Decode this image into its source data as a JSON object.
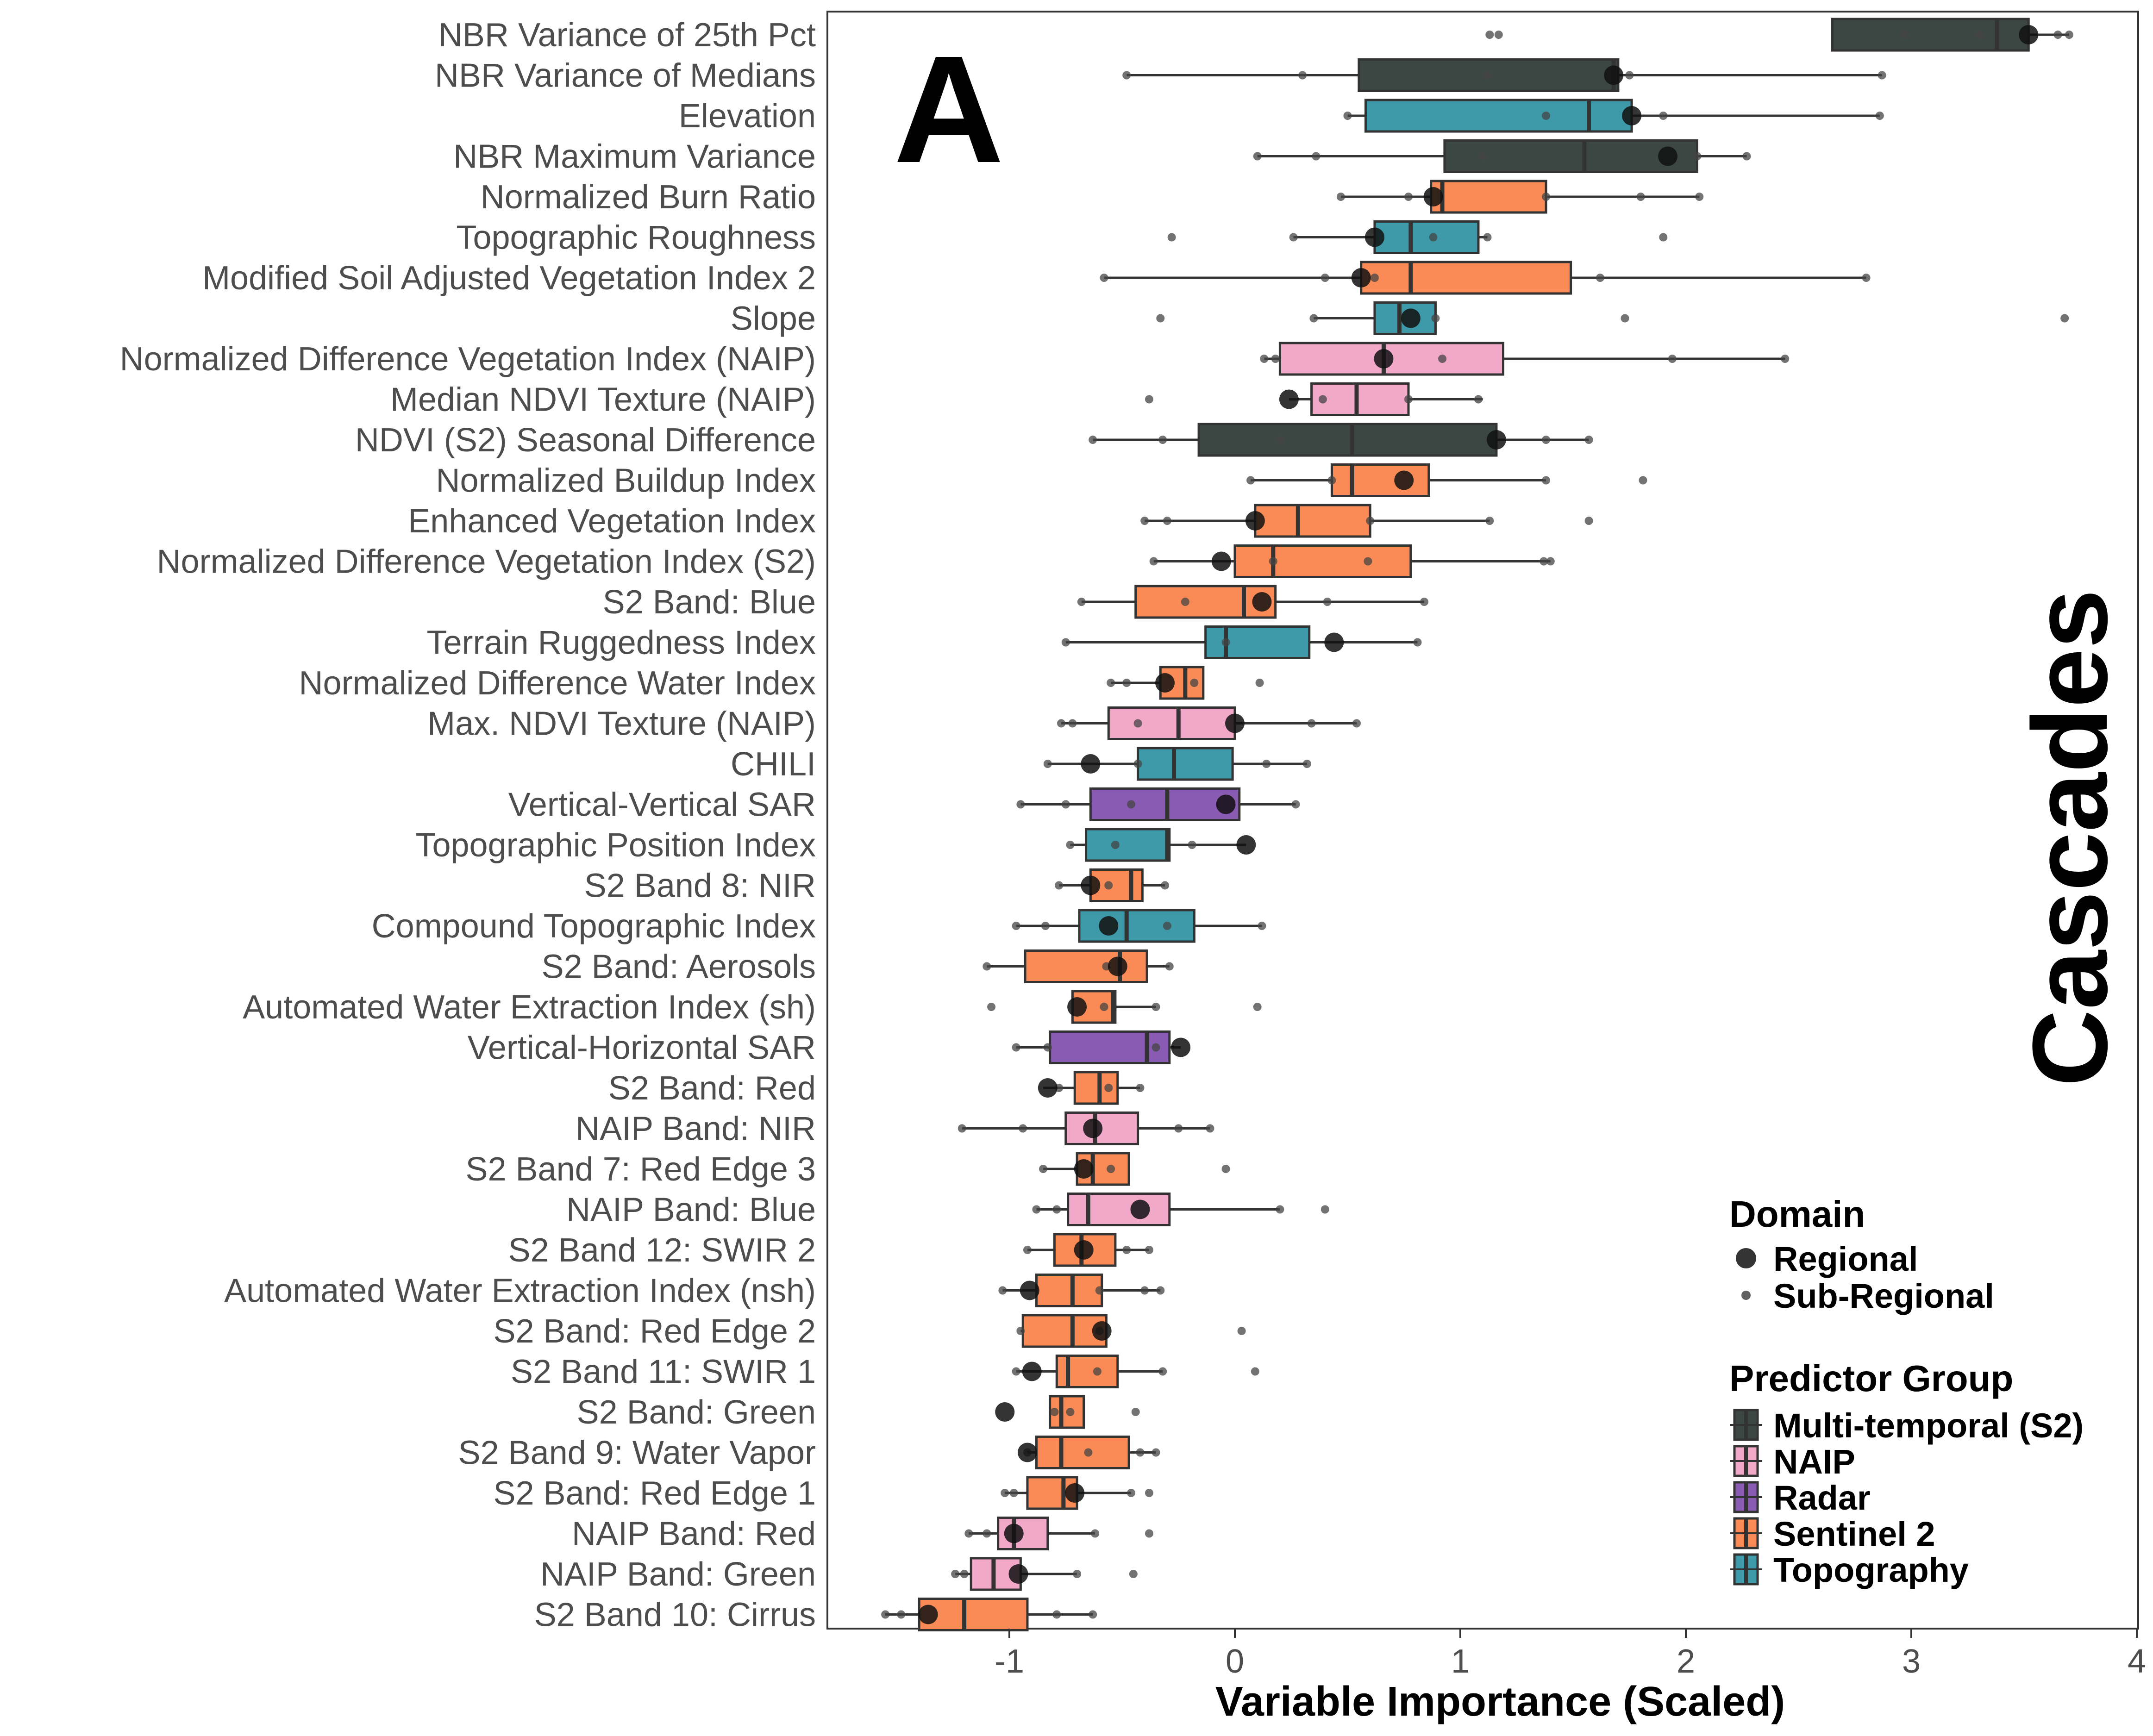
{
  "chart_data": {
    "type": "box",
    "panel_letter": "A",
    "facet_title": "Cascades",
    "xlabel": "Variable Importance (Scaled)",
    "ylabel": "",
    "xlim": [
      -1.8,
      4.0
    ],
    "x_ticks": [
      -1,
      0,
      1,
      2,
      3,
      4
    ],
    "x_tick_labels": [
      "-1",
      "0",
      "1",
      "2",
      "3",
      "4"
    ],
    "grid": false,
    "legend_position": "right-bottom, inside panel",
    "legend": {
      "domain_title": "Domain",
      "domain_items": [
        {
          "label": "Regional",
          "marker": "large-dot"
        },
        {
          "label": "Sub-Regional",
          "marker": "small-dot"
        }
      ],
      "group_title": "Predictor Group",
      "group_items": [
        {
          "label": "Multi-temporal (S2)",
          "color": "#3c4743"
        },
        {
          "label": "NAIP",
          "color": "#f2a8c8"
        },
        {
          "label": "Radar",
          "color": "#8a5bb3"
        },
        {
          "label": "Sentinel 2",
          "color": "#fb8b56"
        },
        {
          "label": "Topography",
          "color": "#3e9aa8"
        }
      ]
    },
    "group_colors": {
      "Multi-temporal (S2)": "#3c4743",
      "NAIP": "#f2a8c8",
      "Radar": "#8a5bb3",
      "Sentinel 2": "#fb8b56",
      "Topography": "#3e9aa8"
    },
    "series": [
      {
        "name": "NBR Variance of 25th Pct",
        "group": "Multi-temporal (S2)",
        "whisker_low": 2.65,
        "q1": 2.65,
        "median": 3.38,
        "q3": 3.52,
        "whisker_high": 3.7,
        "regional": 3.52,
        "subregional": [
          1.13,
          1.17,
          2.97,
          3.3,
          3.65,
          3.7
        ]
      },
      {
        "name": "NBR Variance of Medians",
        "group": "Multi-temporal (S2)",
        "whisker_low": -0.48,
        "q1": 0.55,
        "median": 1.68,
        "q3": 1.7,
        "whisker_high": 2.87,
        "regional": 1.68,
        "subregional": [
          -0.48,
          0.3,
          1.12,
          1.75,
          2.87
        ]
      },
      {
        "name": "Elevation",
        "group": "Topography",
        "whisker_low": 0.5,
        "q1": 0.58,
        "median": 1.57,
        "q3": 1.76,
        "whisker_high": 2.86,
        "regional": 1.76,
        "subregional": [
          0.5,
          1.38,
          1.9,
          2.86
        ]
      },
      {
        "name": "NBR Maximum Variance",
        "group": "Multi-temporal (S2)",
        "whisker_low": 0.1,
        "q1": 0.93,
        "median": 1.55,
        "q3": 2.05,
        "whisker_high": 2.27,
        "regional": 1.92,
        "subregional": [
          0.1,
          0.36,
          1.1,
          2.05,
          2.27
        ]
      },
      {
        "name": "Normalized Burn Ratio",
        "group": "Sentinel 2",
        "whisker_low": 0.47,
        "q1": 0.87,
        "median": 0.92,
        "q3": 1.38,
        "whisker_high": 2.06,
        "regional": 0.88,
        "subregional": [
          0.47,
          0.77,
          1.38,
          1.8,
          2.06
        ]
      },
      {
        "name": "Topographic Roughness",
        "group": "Topography",
        "whisker_low": 0.26,
        "q1": 0.62,
        "median": 0.78,
        "q3": 1.08,
        "whisker_high": 1.12,
        "regional": 0.62,
        "subregional": [
          -0.28,
          0.26,
          0.88,
          1.12,
          1.9
        ]
      },
      {
        "name": "Modified Soil Adjusted Vegetation Index 2",
        "group": "Sentinel 2",
        "whisker_low": -0.58,
        "q1": 0.56,
        "median": 0.78,
        "q3": 1.49,
        "whisker_high": 2.8,
        "regional": 0.56,
        "subregional": [
          -0.58,
          0.4,
          0.62,
          1.62,
          2.8
        ]
      },
      {
        "name": "Slope",
        "group": "Topography",
        "whisker_low": 0.35,
        "q1": 0.62,
        "median": 0.73,
        "q3": 0.89,
        "whisker_high": 0.89,
        "regional": 0.78,
        "subregional": [
          -0.33,
          0.35,
          0.89,
          1.73,
          3.68
        ]
      },
      {
        "name": "Normalized Difference Vegetation Index (NAIP)",
        "group": "NAIP",
        "whisker_low": 0.13,
        "q1": 0.2,
        "median": 0.66,
        "q3": 1.19,
        "whisker_high": 2.44,
        "regional": 0.66,
        "subregional": [
          0.13,
          0.18,
          0.92,
          1.94,
          2.44
        ]
      },
      {
        "name": "Median NDVI Texture (NAIP)",
        "group": "NAIP",
        "whisker_low": 0.24,
        "q1": 0.34,
        "median": 0.54,
        "q3": 0.77,
        "whisker_high": 1.1,
        "regional": 0.24,
        "subregional": [
          -0.38,
          0.39,
          0.77,
          1.08
        ]
      },
      {
        "name": "NDVI (S2) Seasonal Difference",
        "group": "Multi-temporal (S2)",
        "whisker_low": -0.63,
        "q1": -0.16,
        "median": 0.52,
        "q3": 1.16,
        "whisker_high": 1.57,
        "regional": 1.16,
        "subregional": [
          -0.63,
          -0.32,
          0.2,
          1.38,
          1.57
        ]
      },
      {
        "name": "Normalized Buildup Index",
        "group": "Sentinel 2",
        "whisker_low": 0.07,
        "q1": 0.43,
        "median": 0.52,
        "q3": 0.86,
        "whisker_high": 1.38,
        "regional": 0.75,
        "subregional": [
          0.07,
          0.43,
          1.38,
          1.81
        ]
      },
      {
        "name": "Enhanced Vegetation Index",
        "group": "Sentinel 2",
        "whisker_low": -0.4,
        "q1": 0.09,
        "median": 0.28,
        "q3": 0.6,
        "whisker_high": 1.13,
        "regional": 0.09,
        "subregional": [
          -0.4,
          -0.3,
          0.6,
          1.13,
          1.57
        ]
      },
      {
        "name": "Normalized Difference Vegetation Index (S2)",
        "group": "Sentinel 2",
        "whisker_low": -0.36,
        "q1": 0.0,
        "median": 0.17,
        "q3": 0.78,
        "whisker_high": 1.4,
        "regional": -0.06,
        "subregional": [
          -0.36,
          0.17,
          0.59,
          1.37,
          1.4
        ]
      },
      {
        "name": "S2 Band: Blue",
        "group": "Sentinel 2",
        "whisker_low": -0.68,
        "q1": -0.44,
        "median": 0.04,
        "q3": 0.18,
        "whisker_high": 0.84,
        "regional": 0.12,
        "subregional": [
          -0.68,
          -0.22,
          0.41,
          0.84
        ]
      },
      {
        "name": "Terrain Ruggedness Index",
        "group": "Topography",
        "whisker_low": -0.75,
        "q1": -0.13,
        "median": -0.04,
        "q3": 0.33,
        "whisker_high": 0.81,
        "regional": 0.44,
        "subregional": [
          -0.75,
          -0.04,
          0.81
        ]
      },
      {
        "name": "Normalized Difference Water Index",
        "group": "Sentinel 2",
        "whisker_low": -0.55,
        "q1": -0.33,
        "median": -0.22,
        "q3": -0.14,
        "whisker_high": -0.14,
        "regional": -0.31,
        "subregional": [
          -0.55,
          -0.48,
          -0.18,
          0.11
        ]
      },
      {
        "name": "Max. NDVI Texture (NAIP)",
        "group": "NAIP",
        "whisker_low": -0.77,
        "q1": -0.56,
        "median": -0.25,
        "q3": 0.0,
        "whisker_high": 0.54,
        "regional": 0.0,
        "subregional": [
          -0.77,
          -0.72,
          -0.43,
          0.34,
          0.54
        ]
      },
      {
        "name": "CHILI",
        "group": "Topography",
        "whisker_low": -0.83,
        "q1": -0.43,
        "median": -0.27,
        "q3": -0.01,
        "whisker_high": 0.32,
        "regional": -0.64,
        "subregional": [
          -0.83,
          -0.43,
          0.14,
          0.32
        ]
      },
      {
        "name": "Vertical-Vertical SAR",
        "group": "Radar",
        "whisker_low": -0.95,
        "q1": -0.64,
        "median": -0.3,
        "q3": 0.02,
        "whisker_high": 0.27,
        "regional": -0.04,
        "subregional": [
          -0.95,
          -0.75,
          -0.46,
          0.27
        ]
      },
      {
        "name": "Topographic Position Index",
        "group": "Topography",
        "whisker_low": -0.73,
        "q1": -0.66,
        "median": -0.3,
        "q3": -0.29,
        "whisker_high": 0.05,
        "regional": 0.05,
        "subregional": [
          -0.73,
          -0.53,
          -0.19
        ]
      },
      {
        "name": "S2 Band 8: NIR",
        "group": "Sentinel 2",
        "whisker_low": -0.78,
        "q1": -0.64,
        "median": -0.46,
        "q3": -0.41,
        "whisker_high": -0.31,
        "regional": -0.64,
        "subregional": [
          -0.78,
          -0.56,
          -0.31
        ]
      },
      {
        "name": "Compound Topographic Index",
        "group": "Topography",
        "whisker_low": -0.97,
        "q1": -0.69,
        "median": -0.48,
        "q3": -0.18,
        "whisker_high": 0.12,
        "regional": -0.56,
        "subregional": [
          -0.97,
          -0.84,
          -0.3,
          0.12
        ]
      },
      {
        "name": "S2 Band: Aerosols",
        "group": "Sentinel 2",
        "whisker_low": -1.1,
        "q1": -0.93,
        "median": -0.51,
        "q3": -0.39,
        "whisker_high": -0.29,
        "regional": -0.52,
        "subregional": [
          -1.1,
          -0.57,
          -0.29
        ]
      },
      {
        "name": "Automated Water Extraction Index (sh)",
        "group": "Sentinel 2",
        "whisker_low": -0.72,
        "q1": -0.72,
        "median": -0.54,
        "q3": -0.53,
        "whisker_high": -0.35,
        "regional": -0.7,
        "subregional": [
          -1.08,
          -0.58,
          -0.35,
          0.1
        ]
      },
      {
        "name": "Vertical-Horizontal SAR",
        "group": "Radar",
        "whisker_low": -0.97,
        "q1": -0.82,
        "median": -0.39,
        "q3": -0.29,
        "whisker_high": -0.24,
        "regional": -0.24,
        "subregional": [
          -0.97,
          -0.83,
          -0.35
        ]
      },
      {
        "name": "S2 Band: Red",
        "group": "Sentinel 2",
        "whisker_low": -0.85,
        "q1": -0.71,
        "median": -0.6,
        "q3": -0.52,
        "whisker_high": -0.42,
        "regional": -0.83,
        "subregional": [
          -0.78,
          -0.56,
          -0.42
        ]
      },
      {
        "name": "NAIP Band: NIR",
        "group": "NAIP",
        "whisker_low": -1.21,
        "q1": -0.75,
        "median": -0.62,
        "q3": -0.43,
        "whisker_high": -0.11,
        "regional": -0.63,
        "subregional": [
          -1.21,
          -0.94,
          -0.25,
          -0.11
        ]
      },
      {
        "name": "S2 Band 7: Red Edge 3",
        "group": "Sentinel 2",
        "whisker_low": -0.85,
        "q1": -0.7,
        "median": -0.63,
        "q3": -0.47,
        "whisker_high": -0.47,
        "regional": -0.67,
        "subregional": [
          -0.85,
          -0.55,
          -0.04
        ]
      },
      {
        "name": "NAIP Band: Blue",
        "group": "NAIP",
        "whisker_low": -0.88,
        "q1": -0.74,
        "median": -0.65,
        "q3": -0.29,
        "whisker_high": 0.2,
        "regional": -0.42,
        "subregional": [
          -0.88,
          -0.79,
          0.2,
          0.4
        ]
      },
      {
        "name": "S2 Band 12: SWIR 2",
        "group": "Sentinel 2",
        "whisker_low": -0.92,
        "q1": -0.8,
        "median": -0.68,
        "q3": -0.53,
        "whisker_high": -0.38,
        "regional": -0.67,
        "subregional": [
          -0.92,
          -0.48,
          -0.38
        ]
      },
      {
        "name": "Automated Water Extraction Index (nsh)",
        "group": "Sentinel 2",
        "whisker_low": -1.03,
        "q1": -0.88,
        "median": -0.72,
        "q3": -0.59,
        "whisker_high": -0.33,
        "regional": -0.91,
        "subregional": [
          -1.03,
          -0.6,
          -0.4,
          -0.33
        ]
      },
      {
        "name": "S2 Band: Red Edge 2",
        "group": "Sentinel 2",
        "whisker_low": -0.95,
        "q1": -0.94,
        "median": -0.72,
        "q3": -0.57,
        "whisker_high": -0.57,
        "regional": -0.59,
        "subregional": [
          -0.95,
          -0.6,
          0.03
        ]
      },
      {
        "name": "S2 Band 11: SWIR 1",
        "group": "Sentinel 2",
        "whisker_low": -0.97,
        "q1": -0.79,
        "median": -0.74,
        "q3": -0.52,
        "whisker_high": -0.32,
        "regional": -0.9,
        "subregional": [
          -0.97,
          -0.61,
          -0.32,
          0.09
        ]
      },
      {
        "name": "S2 Band: Green",
        "group": "Sentinel 2",
        "whisker_low": -0.82,
        "q1": -0.82,
        "median": -0.77,
        "q3": -0.67,
        "whisker_high": -0.67,
        "regional": -1.02,
        "subregional": [
          -0.8,
          -0.73,
          -0.44
        ]
      },
      {
        "name": "S2 Band 9: Water Vapor",
        "group": "Sentinel 2",
        "whisker_low": -0.92,
        "q1": -0.88,
        "median": -0.77,
        "q3": -0.47,
        "whisker_high": -0.35,
        "regional": -0.92,
        "subregional": [
          -0.92,
          -0.65,
          -0.42,
          -0.35
        ]
      },
      {
        "name": "S2 Band: Red Edge 1",
        "group": "Sentinel 2",
        "whisker_low": -1.02,
        "q1": -0.92,
        "median": -0.76,
        "q3": -0.7,
        "whisker_high": -0.46,
        "regional": -0.71,
        "subregional": [
          -1.02,
          -0.98,
          -0.46,
          -0.38
        ]
      },
      {
        "name": "NAIP Band: Red",
        "group": "NAIP",
        "whisker_low": -1.18,
        "q1": -1.05,
        "median": -0.98,
        "q3": -0.83,
        "whisker_high": -0.62,
        "regional": -0.98,
        "subregional": [
          -1.18,
          -1.1,
          -0.62,
          -0.38
        ]
      },
      {
        "name": "NAIP Band: Green",
        "group": "NAIP",
        "whisker_low": -1.24,
        "q1": -1.17,
        "median": -1.07,
        "q3": -0.95,
        "whisker_high": -0.7,
        "regional": -0.96,
        "subregional": [
          -1.24,
          -1.2,
          -0.7,
          -0.45
        ]
      },
      {
        "name": "S2 Band 10: Cirrus",
        "group": "Sentinel 2",
        "whisker_low": -1.55,
        "q1": -1.4,
        "median": -1.2,
        "q3": -0.92,
        "whisker_high": -0.63,
        "regional": -1.36,
        "subregional": [
          -1.55,
          -1.48,
          -0.79,
          -0.63
        ]
      }
    ]
  }
}
